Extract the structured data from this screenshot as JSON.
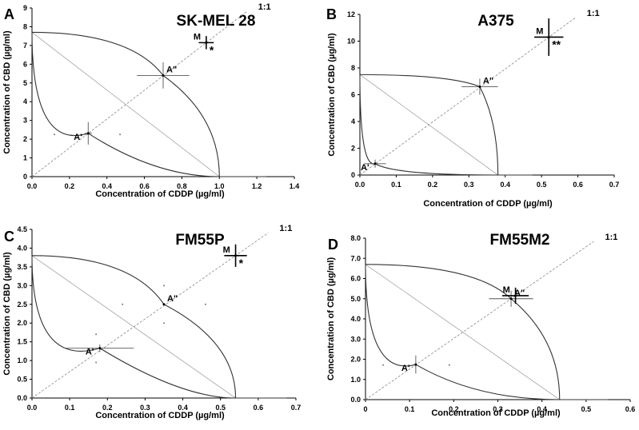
{
  "chart_data": [
    {
      "type": "scatter",
      "panel_letter": "A",
      "title": "SK-MEL 28",
      "xlabel": "Concentration of CDDP (µg/ml)",
      "ylabel": "Concentration of CBD (µg/ml)",
      "xlim": [
        0,
        1.4
      ],
      "ylim": [
        0,
        9
      ],
      "xticks": [
        "0.0",
        "0.2",
        "0.4",
        "0.6",
        "0.8",
        "1.0",
        "1.2",
        "1.4"
      ],
      "yticks": [
        "0",
        "1",
        "2",
        "3",
        "4",
        "5",
        "6",
        "7",
        "8",
        "9"
      ],
      "line_label": "1:1",
      "ic_x": 1.0,
      "ic_y": 7.7,
      "additive_curve": [
        [
          0,
          7.7
        ],
        [
          0.3,
          2.31
        ],
        [
          1.0,
          0
        ]
      ],
      "points": [
        {
          "label": "A'",
          "x": 0.3,
          "y": 2.31,
          "xerr": 0.02,
          "yerr": 0.6
        },
        {
          "label": "A\"",
          "x": 0.7,
          "y": 5.4,
          "xerr": 0.14,
          "yerr": 0.7
        },
        {
          "label": "M",
          "x": 0.93,
          "y": 7.15,
          "xerr": 0.04,
          "yerr": 0.35,
          "sig": "*"
        }
      ],
      "scatter_dots": [
        [
          0.12,
          2.25
        ],
        [
          0.47,
          2.25
        ]
      ],
      "grid": false
    },
    {
      "type": "scatter",
      "panel_letter": "B",
      "title": "A375",
      "xlabel": "Concentration of CDDP (µg/ml)",
      "ylabel": "Concentration of CBD (µg/ml)",
      "xlim": [
        0,
        0.7
      ],
      "ylim": [
        0,
        12
      ],
      "xticks": [
        "0.0",
        "0.1",
        "0.2",
        "0.3",
        "0.4",
        "0.5",
        "0.6",
        "0.7"
      ],
      "yticks": [
        "0",
        "2",
        "4",
        "6",
        "8",
        "10",
        "12"
      ],
      "line_label": "1:1",
      "ic_x": 0.38,
      "ic_y": 7.5,
      "additive_curve": [
        [
          0,
          7.5
        ],
        [
          0.038,
          0.74
        ],
        [
          0.38,
          0
        ]
      ],
      "points": [
        {
          "label": "A'",
          "x": 0.042,
          "y": 0.85,
          "xerr": 0.03,
          "yerr": 0.3
        },
        {
          "label": "A\"",
          "x": 0.33,
          "y": 6.6,
          "xerr": 0.05,
          "yerr": 0.6
        },
        {
          "label": "M",
          "x": 0.52,
          "y": 10.3,
          "xerr": 0.04,
          "yerr": 1.4,
          "sig": "**"
        }
      ],
      "scatter_dots": [],
      "grid": false
    },
    {
      "type": "scatter",
      "panel_letter": "C",
      "title": "FM55P",
      "xlabel": "Concentration of CDDP (µg/ml)",
      "ylabel": "Concentration of CBD (µg/ml)",
      "xlim": [
        0,
        0.7
      ],
      "ylim": [
        0,
        4.5
      ],
      "xticks": [
        "0.0",
        "0.1",
        "0.2",
        "0.3",
        "0.4",
        "0.5",
        "0.6",
        "0.7"
      ],
      "yticks": [
        "0.0",
        "0.5",
        "1.0",
        "1.5",
        "2.0",
        "2.5",
        "3.0",
        "3.5",
        "4.0",
        "4.5"
      ],
      "line_label": "1:1",
      "ic_x": 0.54,
      "ic_y": 3.8,
      "additive_curve": [
        [
          0,
          3.8
        ],
        [
          0.18,
          1.33
        ],
        [
          0.54,
          0
        ]
      ],
      "points": [
        {
          "label": "A'",
          "x": 0.18,
          "y": 1.33,
          "xerr": 0.09,
          "yerr": 0.1
        },
        {
          "label": "A\"",
          "x": 0.35,
          "y": 2.5,
          "xerr": 0.0,
          "yerr": 0.0
        },
        {
          "label": "M",
          "x": 0.54,
          "y": 3.8,
          "xerr": 0.03,
          "yerr": 0.3,
          "sig": "*"
        }
      ],
      "scatter_dots": [
        [
          0.24,
          2.5
        ],
        [
          0.46,
          2.5
        ],
        [
          0.35,
          3.0
        ],
        [
          0.35,
          2.0
        ],
        [
          0.17,
          1.7
        ],
        [
          0.17,
          0.95
        ]
      ],
      "grid": false
    },
    {
      "type": "scatter",
      "panel_letter": "D",
      "title": "FM55M2",
      "xlabel": "Concentration of CDDP (µg/ml)",
      "ylabel": "Concentration of CBD (µg/ml)",
      "xlim": [
        0,
        0.6
      ],
      "ylim": [
        0,
        8
      ],
      "xticks": [
        "0",
        "0.1",
        "0.2",
        "0.3",
        "0.4",
        "0.5",
        "0.6"
      ],
      "yticks": [
        "0.0",
        "1.0",
        "2.0",
        "3.0",
        "4.0",
        "5.0",
        "6.0",
        "7.0",
        "8.0"
      ],
      "line_label": "1:1",
      "ic_x": 0.44,
      "ic_y": 6.7,
      "additive_curve": [
        [
          0,
          6.7
        ],
        [
          0.114,
          1.74
        ],
        [
          0.44,
          0
        ]
      ],
      "points": [
        {
          "label": "A'",
          "x": 0.114,
          "y": 1.74,
          "xerr": 0.0,
          "yerr": 0.45
        },
        {
          "label": "A\"",
          "x": 0.33,
          "y": 5.0,
          "xerr": 0.05,
          "yerr": 0.4
        },
        {
          "label": "M",
          "x": 0.34,
          "y": 5.15,
          "xerr": 0.03,
          "yerr": 0.4,
          "sig": ""
        }
      ],
      "scatter_dots": [
        [
          0.04,
          1.72
        ],
        [
          0.19,
          1.72
        ]
      ],
      "grid": false
    }
  ],
  "colors": {
    "axis": "#000000",
    "curve": "#333333",
    "diagonal": "#888888",
    "errorbar": "#555555"
  }
}
